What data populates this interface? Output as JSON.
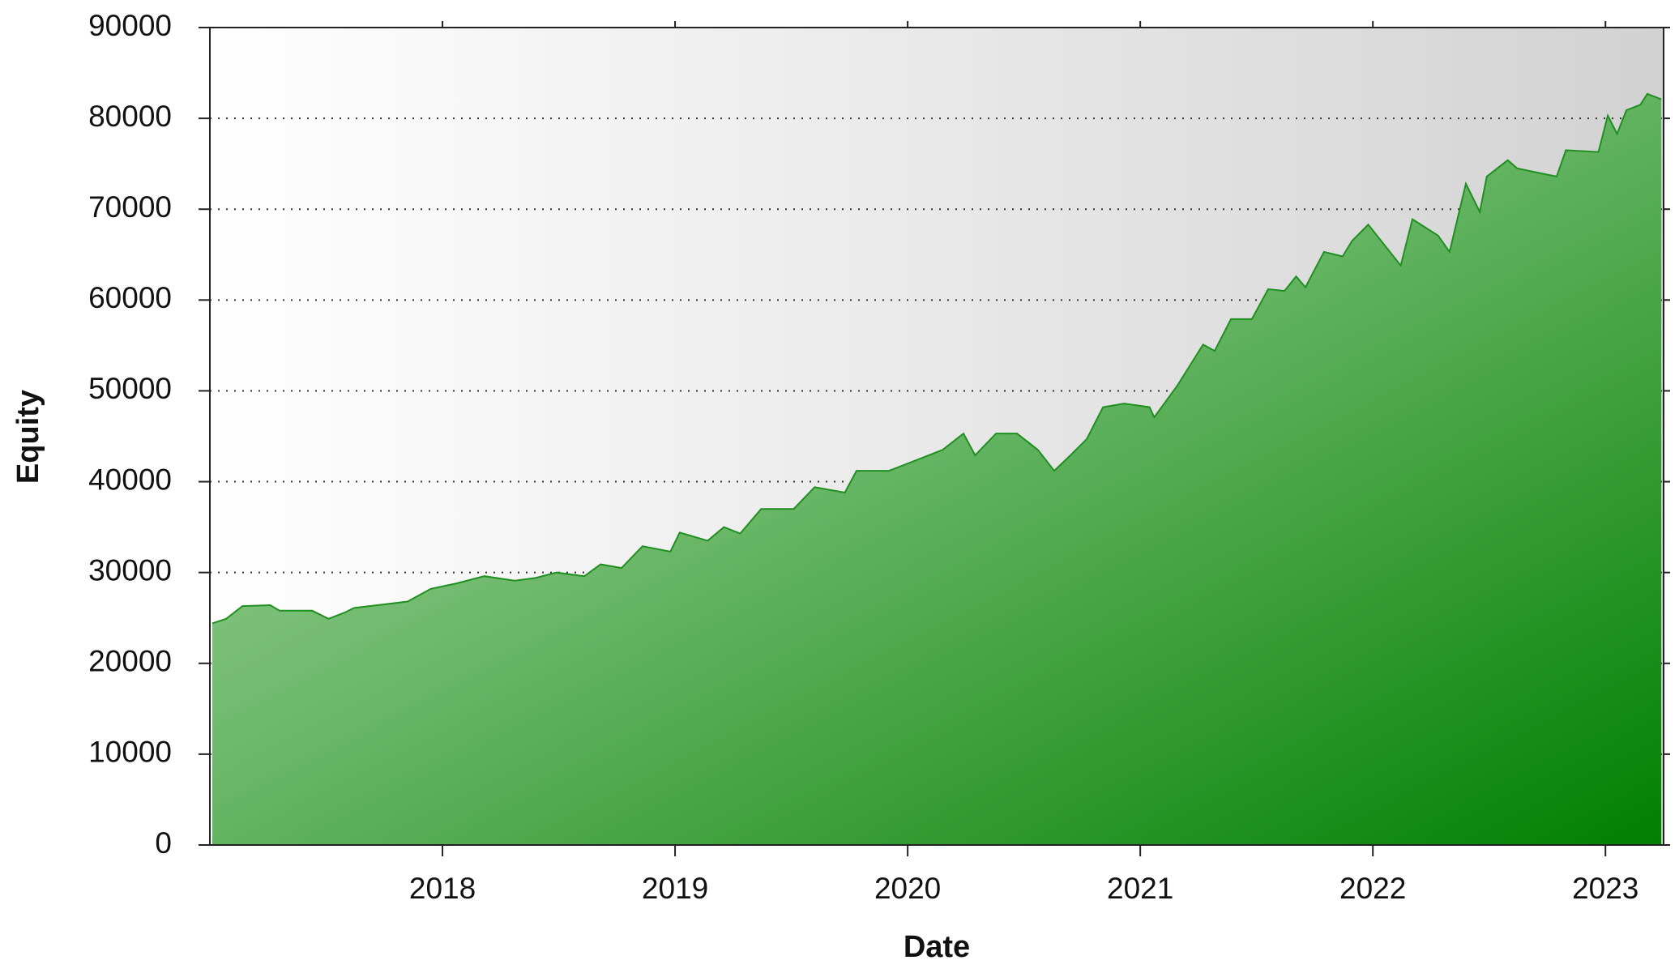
{
  "chart_data": {
    "type": "area",
    "xlabel": "Date",
    "ylabel": "Equity",
    "x": [
      2017.01,
      2017.07,
      2017.14,
      2017.26,
      2017.3,
      2017.44,
      2017.51,
      2017.58,
      2017.62,
      2017.72,
      2017.85,
      2017.95,
      2018.06,
      2018.18,
      2018.31,
      2018.4,
      2018.49,
      2018.61,
      2018.68,
      2018.77,
      2018.86,
      2018.98,
      2019.02,
      2019.14,
      2019.21,
      2019.28,
      2019.37,
      2019.51,
      2019.6,
      2019.73,
      2019.78,
      2019.92,
      2020.01,
      2020.15,
      2020.24,
      2020.29,
      2020.38,
      2020.47,
      2020.56,
      2020.63,
      2020.7,
      2020.77,
      2020.84,
      2020.93,
      2021.04,
      2021.06,
      2021.16,
      2021.27,
      2021.32,
      2021.39,
      2021.48,
      2021.55,
      2021.62,
      2021.67,
      2021.71,
      2021.79,
      2021.87,
      2021.91,
      2021.98,
      2022.12,
      2022.17,
      2022.28,
      2022.33,
      2022.4,
      2022.46,
      2022.49,
      2022.58,
      2022.62,
      2022.79,
      2022.83,
      2022.97,
      2023.01,
      2023.05,
      2023.09,
      2023.15,
      2023.18,
      2023.24
    ],
    "values": [
      24400,
      24900,
      26300,
      26400,
      25800,
      25800,
      24900,
      25600,
      26100,
      26400,
      26800,
      28200,
      28800,
      29600,
      29100,
      29400,
      30000,
      29600,
      30900,
      30500,
      32900,
      32300,
      34400,
      33500,
      35000,
      34300,
      37000,
      37000,
      39400,
      38800,
      41200,
      41200,
      42100,
      43500,
      45300,
      42900,
      45300,
      45300,
      43500,
      41200,
      42900,
      44700,
      48200,
      48600,
      48200,
      47100,
      50600,
      55100,
      54400,
      57900,
      57900,
      61200,
      61000,
      62600,
      61400,
      65300,
      64800,
      66500,
      68300,
      63800,
      68900,
      67100,
      65300,
      72800,
      69700,
      73600,
      75400,
      74500,
      73600,
      76500,
      76300,
      80300,
      78300,
      80900,
      81500,
      82700,
      82100
    ],
    "color": "#1f8f1f",
    "xlim": [
      2017.0,
      2023.25
    ],
    "xticks": [
      2018,
      2019,
      2020,
      2021,
      2022,
      2023
    ],
    "ylim": [
      0,
      90000
    ],
    "yticks": [
      0,
      10000,
      20000,
      30000,
      40000,
      50000,
      60000,
      70000,
      80000,
      90000
    ],
    "grid": true
  }
}
